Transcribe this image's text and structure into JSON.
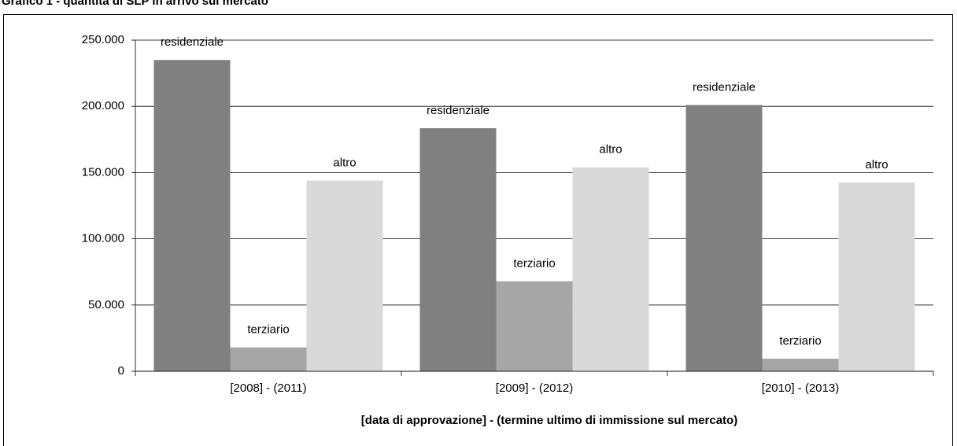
{
  "chart_data": {
    "type": "bar",
    "title": "Grafico 1 - quantità di SLP in arrivo sul mercato",
    "x_label": "[data di approvazione] - (termine ultimo di immissione sul mercato)",
    "categories": [
      "[2008] - (2011)",
      "[2009] - (2012)",
      "[2010] - (2013)"
    ],
    "series": [
      {
        "name": "residenziale",
        "color": "#808080",
        "values": [
          235000,
          183500,
          201000
        ]
      },
      {
        "name": "terziario",
        "color": "#a6a6a6",
        "values": [
          18000,
          68000,
          9500
        ]
      },
      {
        "name": "altro",
        "color": "#d9d9d9",
        "values": [
          144000,
          154000,
          142500
        ]
      }
    ],
    "ylim": [
      0,
      250000
    ],
    "yticks": [
      0,
      {
        "value": 50000,
        "label": "50.000"
      },
      {
        "value": 100000,
        "label": "100.000"
      },
      {
        "value": 150000,
        "label": "150.000"
      },
      {
        "value": 200000,
        "label": "200.000"
      },
      {
        "value": 250000,
        "label": "250.000"
      }
    ],
    "grid": true
  }
}
